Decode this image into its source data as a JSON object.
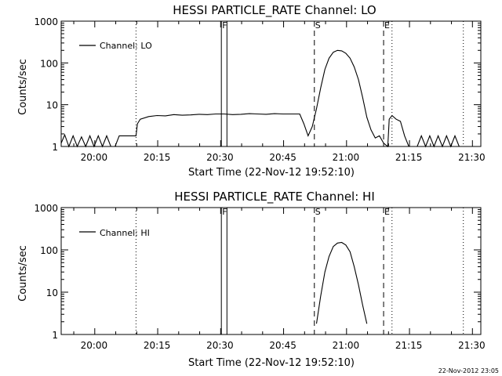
{
  "footer_timestamp": "22-Nov-2012 23:05",
  "colors": {
    "line": "#000000",
    "background": "#ffffff"
  },
  "chart_data": [
    {
      "type": "line",
      "title": "HESSI PARTICLE_RATE Channel: LO",
      "xlabel": "Start Time (22-Nov-12 19:52:10)",
      "ylabel": "Counts/sec",
      "yscale": "log",
      "ylim": [
        1,
        1000
      ],
      "xlim": [
        "19:52:10",
        "21:32:10"
      ],
      "x_ticks": [
        "20:00",
        "20:15",
        "20:30",
        "20:45",
        "21:00",
        "21:15",
        "21:30"
      ],
      "y_ticks": [
        "1",
        "10",
        "100",
        "1000"
      ],
      "legend": {
        "placement": "top-left",
        "entries": [
          "Channel: LO"
        ]
      },
      "markers": [
        {
          "label": "F",
          "style": "solid-box",
          "times": [
            "20:30:20",
            "20:31:40"
          ]
        },
        {
          "label": "S",
          "style": "dashed",
          "times": [
            "20:52:30"
          ]
        },
        {
          "label": "E",
          "style": "dashed",
          "times": [
            "21:09:00"
          ]
        },
        {
          "label": "",
          "style": "dotted",
          "times": [
            "20:10:00",
            "21:11:00",
            "21:28:00"
          ]
        }
      ],
      "series": [
        {
          "name": "Channel: LO",
          "points": [
            [
              "19:52:10",
              1.2
            ],
            [
              "19:53:00",
              1.9
            ],
            [
              "19:54:00",
              1.0
            ],
            [
              "19:55:00",
              1.8
            ],
            [
              "19:56:00",
              1.0
            ],
            [
              "19:57:00",
              1.7
            ],
            [
              "19:58:00",
              1.0
            ],
            [
              "19:59:00",
              1.8
            ],
            [
              "20:00:00",
              1.0
            ],
            [
              "20:01:00",
              1.8
            ],
            [
              "20:02:00",
              1.0
            ],
            [
              "20:03:00",
              1.8
            ],
            [
              "20:04:00",
              1.0
            ],
            [
              "20:05:00",
              1.0
            ],
            [
              "20:06:00",
              1.8
            ],
            [
              "20:07:00",
              1.8
            ],
            [
              "20:08:00",
              1.8
            ],
            [
              "20:09:00",
              1.8
            ],
            [
              "20:10:00",
              1.8
            ],
            [
              "20:10:20",
              3.5
            ],
            [
              "20:11:00",
              4.5
            ],
            [
              "20:13:00",
              5.2
            ],
            [
              "20:15:00",
              5.5
            ],
            [
              "20:17:00",
              5.4
            ],
            [
              "20:19:00",
              5.8
            ],
            [
              "20:21:00",
              5.6
            ],
            [
              "20:23:00",
              5.7
            ],
            [
              "20:25:00",
              5.9
            ],
            [
              "20:27:00",
              5.8
            ],
            [
              "20:29:00",
              6.0
            ],
            [
              "20:31:00",
              6.0
            ],
            [
              "20:33:00",
              5.8
            ],
            [
              "20:35:00",
              5.9
            ],
            [
              "20:37:00",
              6.1
            ],
            [
              "20:39:00",
              6.0
            ],
            [
              "20:41:00",
              5.9
            ],
            [
              "20:43:00",
              6.1
            ],
            [
              "20:45:00",
              6.0
            ],
            [
              "20:47:00",
              6.0
            ],
            [
              "20:49:00",
              6.0
            ],
            [
              "20:50:00",
              3.5
            ],
            [
              "20:51:00",
              1.8
            ],
            [
              "20:52:00",
              3.0
            ],
            [
              "20:53:00",
              8.0
            ],
            [
              "20:54:00",
              25
            ],
            [
              "20:55:00",
              70
            ],
            [
              "20:56:00",
              130
            ],
            [
              "20:57:00",
              180
            ],
            [
              "20:58:00",
              200
            ],
            [
              "20:59:00",
              195
            ],
            [
              "21:00:00",
              170
            ],
            [
              "21:01:00",
              130
            ],
            [
              "21:02:00",
              80
            ],
            [
              "21:03:00",
              40
            ],
            [
              "21:04:00",
              15
            ],
            [
              "21:05:00",
              5.0
            ],
            [
              "21:06:00",
              2.5
            ],
            [
              "21:07:00",
              1.6
            ],
            [
              "21:08:00",
              1.8
            ],
            [
              "21:09:00",
              1.2
            ],
            [
              "21:10:00",
              1.0
            ],
            [
              "21:10:20",
              4.5
            ],
            [
              "21:11:00",
              5.5
            ],
            [
              "21:12:00",
              4.5
            ],
            [
              "21:13:00",
              4.0
            ],
            [
              "21:14:00",
              1.8
            ],
            [
              "21:15:00",
              1.0
            ],
            [
              "21:16:00",
              1.0
            ],
            [
              "21:17:00",
              1.0
            ],
            [
              "21:18:00",
              1.8
            ],
            [
              "21:19:00",
              1.0
            ],
            [
              "21:20:00",
              1.8
            ],
            [
              "21:21:00",
              1.0
            ],
            [
              "21:22:00",
              1.8
            ],
            [
              "21:23:00",
              1.0
            ],
            [
              "21:24:00",
              1.8
            ],
            [
              "21:25:00",
              1.0
            ],
            [
              "21:26:00",
              1.8
            ],
            [
              "21:27:00",
              1.0
            ]
          ]
        }
      ]
    },
    {
      "type": "line",
      "title": "HESSI PARTICLE_RATE Channel: HI",
      "xlabel": "Start Time (22-Nov-12 19:52:10)",
      "ylabel": "Counts/sec",
      "yscale": "log",
      "ylim": [
        1,
        1000
      ],
      "xlim": [
        "19:52:10",
        "21:32:10"
      ],
      "x_ticks": [
        "20:00",
        "20:15",
        "20:30",
        "20:45",
        "21:00",
        "21:15",
        "21:30"
      ],
      "y_ticks": [
        "1",
        "10",
        "100",
        "1000"
      ],
      "legend": {
        "placement": "top-left",
        "entries": [
          "Channel: HI"
        ]
      },
      "markers": [
        {
          "label": "F",
          "style": "solid-box",
          "times": [
            "20:30:20",
            "20:31:40"
          ]
        },
        {
          "label": "S",
          "style": "dashed",
          "times": [
            "20:52:30"
          ]
        },
        {
          "label": "E",
          "style": "dashed",
          "times": [
            "21:09:00"
          ]
        },
        {
          "label": "",
          "style": "dotted",
          "times": [
            "20:10:00",
            "21:11:00",
            "21:28:00"
          ]
        }
      ],
      "series": [
        {
          "name": "Channel: HI",
          "points": [
            [
              "20:53:00",
              1.8
            ],
            [
              "20:54:00",
              8.0
            ],
            [
              "20:55:00",
              30
            ],
            [
              "20:56:00",
              70
            ],
            [
              "20:57:00",
              120
            ],
            [
              "20:58:00",
              145
            ],
            [
              "20:59:00",
              150
            ],
            [
              "21:00:00",
              130
            ],
            [
              "21:01:00",
              90
            ],
            [
              "21:02:00",
              40
            ],
            [
              "21:03:00",
              15
            ],
            [
              "21:04:00",
              5.0
            ],
            [
              "21:05:00",
              1.8
            ]
          ]
        }
      ]
    }
  ]
}
